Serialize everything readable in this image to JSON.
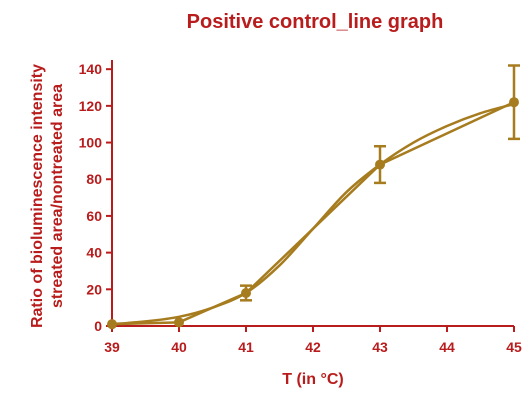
{
  "chart_data": {
    "type": "line",
    "title": "Positive control_line graph",
    "xlabel": "T (in °C)",
    "ylabel_lines": [
      "Ratio of bioluminescence intensity",
      "streated area/nontreated area"
    ],
    "x_ticks": [
      "39",
      "40",
      "41",
      "42",
      "43",
      "44",
      "45"
    ],
    "y_ticks": [
      "0",
      "20",
      "40",
      "60",
      "80",
      "100",
      "120",
      "140"
    ],
    "xlim": [
      39,
      45
    ],
    "ylim": [
      0,
      145
    ],
    "grid": false,
    "legend": "none",
    "series": [
      {
        "x": [
          39,
          40,
          41,
          43,
          45
        ],
        "y": [
          1,
          2,
          18,
          88,
          122
        ],
        "error": [
          0,
          0,
          4,
          10,
          20
        ]
      }
    ],
    "fit_curve": {
      "x": [
        39,
        39.5,
        40,
        40.5,
        41,
        41.5,
        42,
        42.5,
        43,
        43.5,
        44,
        44.5,
        45
      ],
      "y": [
        1,
        2.5,
        5,
        10,
        18,
        33,
        53,
        73,
        88,
        100,
        109,
        116,
        121
      ]
    },
    "colors": {
      "series": "#a67c1f",
      "axis": "#b91c1c",
      "text": "#b91c1c"
    }
  }
}
